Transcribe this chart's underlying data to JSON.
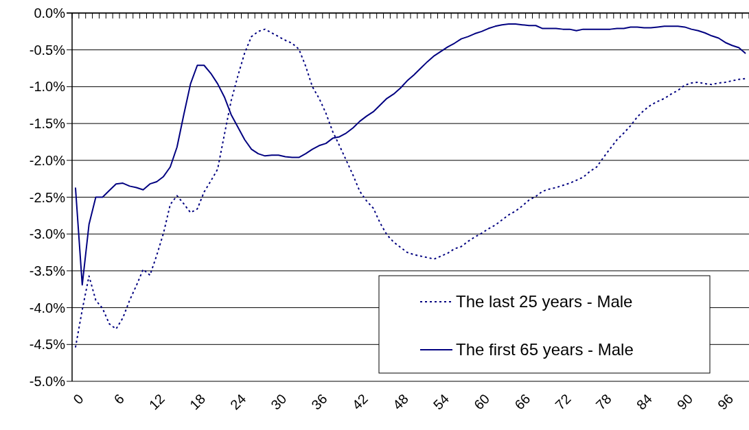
{
  "chart_data": {
    "type": "line",
    "categories": [
      "0",
      null,
      null,
      null,
      null,
      null,
      "6",
      null,
      null,
      null,
      null,
      null,
      "12",
      null,
      null,
      null,
      null,
      null,
      "18",
      null,
      null,
      null,
      null,
      null,
      "24",
      null,
      null,
      null,
      null,
      null,
      "30",
      null,
      null,
      null,
      null,
      null,
      "36",
      null,
      null,
      null,
      null,
      null,
      "42",
      null,
      null,
      null,
      null,
      null,
      "48",
      null,
      null,
      null,
      null,
      null,
      "54",
      null,
      null,
      null,
      null,
      null,
      "60",
      null,
      null,
      null,
      null,
      null,
      "66",
      null,
      null,
      null,
      null,
      null,
      "72",
      null,
      null,
      null,
      null,
      null,
      "78",
      null,
      null,
      null,
      null,
      null,
      "84",
      null,
      null,
      null,
      null,
      null,
      "90",
      null,
      null,
      null,
      null,
      null,
      "96",
      null,
      null,
      null
    ],
    "series": [
      {
        "name": "The last 25 years - Male",
        "color": "#000080",
        "line_style": "dotted",
        "values": [
          -4.54,
          -4.03,
          -3.57,
          -3.9,
          -4.01,
          -4.22,
          -4.29,
          -4.14,
          -3.9,
          -3.7,
          -3.48,
          -3.56,
          -3.29,
          -2.99,
          -2.6,
          -2.48,
          -2.59,
          -2.71,
          -2.66,
          -2.43,
          -2.28,
          -2.12,
          -1.65,
          -1.19,
          -0.85,
          -0.54,
          -0.32,
          -0.25,
          -0.22,
          -0.27,
          -0.32,
          -0.37,
          -0.41,
          -0.49,
          -0.72,
          -1.0,
          -1.16,
          -1.36,
          -1.61,
          -1.8,
          -2.0,
          -2.2,
          -2.42,
          -2.55,
          -2.65,
          -2.85,
          -3.01,
          -3.11,
          -3.18,
          -3.25,
          -3.28,
          -3.3,
          -3.32,
          -3.34,
          -3.3,
          -3.26,
          -3.2,
          -3.17,
          -3.1,
          -3.04,
          -2.99,
          -2.93,
          -2.88,
          -2.81,
          -2.74,
          -2.69,
          -2.62,
          -2.54,
          -2.49,
          -2.42,
          -2.39,
          -2.37,
          -2.34,
          -2.31,
          -2.27,
          -2.23,
          -2.15,
          -2.09,
          -1.96,
          -1.84,
          -1.72,
          -1.63,
          -1.53,
          -1.41,
          -1.32,
          -1.25,
          -1.2,
          -1.16,
          -1.1,
          -1.05,
          -0.98,
          -0.95,
          -0.94,
          -0.96,
          -0.97,
          -0.95,
          -0.94,
          -0.92,
          -0.9,
          -0.89
        ]
      },
      {
        "name": "The first 65 years - Male",
        "color": "#000080",
        "line_style": "solid",
        "values": [
          -2.37,
          -3.69,
          -2.87,
          -2.5,
          -2.5,
          -2.41,
          -2.32,
          -2.31,
          -2.35,
          -2.37,
          -2.4,
          -2.32,
          -2.29,
          -2.22,
          -2.09,
          -1.82,
          -1.38,
          -0.96,
          -0.71,
          -0.71,
          -0.82,
          -0.96,
          -1.14,
          -1.38,
          -1.55,
          -1.72,
          -1.85,
          -1.91,
          -1.94,
          -1.93,
          -1.93,
          -1.95,
          -1.96,
          -1.96,
          -1.91,
          -1.85,
          -1.8,
          -1.77,
          -1.7,
          -1.68,
          -1.63,
          -1.56,
          -1.47,
          -1.4,
          -1.34,
          -1.25,
          -1.16,
          -1.1,
          -1.02,
          -0.92,
          -0.84,
          -0.75,
          -0.66,
          -0.58,
          -0.52,
          -0.46,
          -0.41,
          -0.35,
          -0.32,
          -0.28,
          -0.25,
          -0.21,
          -0.18,
          -0.16,
          -0.15,
          -0.15,
          -0.16,
          -0.17,
          -0.17,
          -0.21,
          -0.21,
          -0.21,
          -0.22,
          -0.22,
          -0.24,
          -0.22,
          -0.22,
          -0.22,
          -0.22,
          -0.22,
          -0.21,
          -0.21,
          -0.19,
          -0.19,
          -0.2,
          -0.2,
          -0.19,
          -0.18,
          -0.18,
          -0.18,
          -0.19,
          -0.22,
          -0.24,
          -0.27,
          -0.31,
          -0.34,
          -0.4,
          -0.44,
          -0.47,
          -0.55
        ]
      }
    ],
    "ylim": [
      -5,
      0
    ],
    "yticks": [
      {
        "value": -5,
        "label": "-5.0%"
      },
      {
        "value": -4.5,
        "label": "-4.5%"
      },
      {
        "value": -4,
        "label": "-4.0%"
      },
      {
        "value": -3.5,
        "label": "-3.5%"
      },
      {
        "value": -3,
        "label": "-3.0%"
      },
      {
        "value": -2.5,
        "label": "-2.5%"
      },
      {
        "value": -2,
        "label": "-2.0%"
      },
      {
        "value": -1.5,
        "label": "-1.5%"
      },
      {
        "value": -1,
        "label": "-1.0%"
      },
      {
        "value": -0.5,
        "label": "-0.5%"
      },
      {
        "value": 0,
        "label": "0.0%"
      }
    ],
    "grid": "y",
    "legend": "bottom right",
    "marker": "none"
  }
}
